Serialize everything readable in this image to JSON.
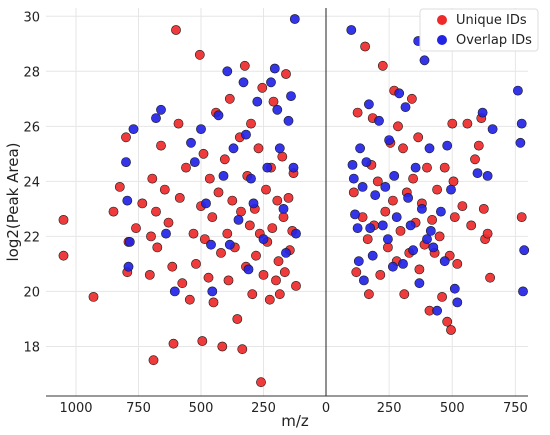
{
  "chart_data": {
    "type": "scatter",
    "title": "",
    "xlabel": "m/z",
    "ylabel": "log2(Peak Area)",
    "x_tick_labels_left": [
      "1000",
      "750",
      "500",
      "250",
      "0"
    ],
    "x_tick_labels_right": [
      "250",
      "500",
      "750"
    ],
    "xlim_left": [
      1120,
      0
    ],
    "xlim_right": [
      0,
      800
    ],
    "ylim": [
      16.2,
      30.3
    ],
    "yticks": [
      18,
      20,
      22,
      24,
      26,
      28,
      30
    ],
    "grid": true,
    "legend_position": "top-right",
    "colors": {
      "unique": "#ee2a2a",
      "overlap": "#2323e6"
    },
    "series": [
      {
        "name": "Unique IDs",
        "panel": "left",
        "points": [
          [
            1050,
            22.6
          ],
          [
            1050,
            21.3
          ],
          [
            930,
            19.8
          ],
          [
            850,
            22.9
          ],
          [
            825,
            23.8
          ],
          [
            800,
            25.6
          ],
          [
            795,
            20.7
          ],
          [
            790,
            21.8
          ],
          [
            760,
            22.3
          ],
          [
            735,
            23.2
          ],
          [
            705,
            20.6
          ],
          [
            700,
            22.0
          ],
          [
            695,
            24.1
          ],
          [
            690,
            17.5
          ],
          [
            680,
            22.9
          ],
          [
            675,
            21.6
          ],
          [
            660,
            25.3
          ],
          [
            645,
            23.7
          ],
          [
            630,
            22.5
          ],
          [
            615,
            20.9
          ],
          [
            610,
            18.1
          ],
          [
            600,
            29.5
          ],
          [
            590,
            26.1
          ],
          [
            585,
            23.4
          ],
          [
            575,
            20.3
          ],
          [
            560,
            24.5
          ],
          [
            545,
            19.7
          ],
          [
            530,
            22.1
          ],
          [
            520,
            21.0
          ],
          [
            505,
            28.6
          ],
          [
            500,
            23.1
          ],
          [
            495,
            18.2
          ],
          [
            490,
            25.0
          ],
          [
            485,
            21.9
          ],
          [
            470,
            20.5
          ],
          [
            465,
            24.1
          ],
          [
            455,
            22.7
          ],
          [
            450,
            19.6
          ],
          [
            440,
            26.5
          ],
          [
            430,
            23.6
          ],
          [
            420,
            21.4
          ],
          [
            415,
            18.0
          ],
          [
            405,
            24.8
          ],
          [
            395,
            22.1
          ],
          [
            390,
            20.4
          ],
          [
            385,
            27.0
          ],
          [
            375,
            23.3
          ],
          [
            365,
            21.6
          ],
          [
            355,
            19.0
          ],
          [
            345,
            25.6
          ],
          [
            340,
            22.9
          ],
          [
            335,
            17.9
          ],
          [
            325,
            28.2
          ],
          [
            320,
            20.9
          ],
          [
            315,
            24.2
          ],
          [
            305,
            22.4
          ],
          [
            300,
            26.1
          ],
          [
            295,
            19.9
          ],
          [
            285,
            23.0
          ],
          [
            280,
            21.3
          ],
          [
            270,
            25.2
          ],
          [
            265,
            22.1
          ],
          [
            260,
            16.7
          ],
          [
            255,
            27.4
          ],
          [
            250,
            20.6
          ],
          [
            240,
            23.7
          ],
          [
            235,
            21.8
          ],
          [
            225,
            19.7
          ],
          [
            220,
            24.5
          ],
          [
            215,
            22.3
          ],
          [
            210,
            26.9
          ],
          [
            200,
            20.4
          ],
          [
            195,
            23.3
          ],
          [
            190,
            21.1
          ],
          [
            185,
            19.9
          ],
          [
            175,
            24.9
          ],
          [
            170,
            22.7
          ],
          [
            165,
            20.7
          ],
          [
            160,
            27.9
          ],
          [
            150,
            23.4
          ],
          [
            145,
            21.5
          ],
          [
            135,
            22.2
          ],
          [
            130,
            24.3
          ],
          [
            120,
            20.2
          ]
        ]
      },
      {
        "name": "Overlap IDs",
        "panel": "left",
        "points": [
          [
            800,
            24.7
          ],
          [
            795,
            23.3
          ],
          [
            790,
            20.9
          ],
          [
            785,
            21.8
          ],
          [
            770,
            25.9
          ],
          [
            680,
            26.3
          ],
          [
            660,
            26.6
          ],
          [
            640,
            22.1
          ],
          [
            605,
            20.0
          ],
          [
            540,
            25.4
          ],
          [
            525,
            24.7
          ],
          [
            500,
            25.9
          ],
          [
            480,
            23.2
          ],
          [
            460,
            21.7
          ],
          [
            455,
            20.0
          ],
          [
            430,
            26.4
          ],
          [
            410,
            24.2
          ],
          [
            395,
            28.0
          ],
          [
            385,
            21.7
          ],
          [
            370,
            25.2
          ],
          [
            350,
            22.6
          ],
          [
            330,
            27.6
          ],
          [
            320,
            25.7
          ],
          [
            310,
            20.8
          ],
          [
            300,
            24.1
          ],
          [
            290,
            23.2
          ],
          [
            275,
            26.9
          ],
          [
            250,
            21.9
          ],
          [
            235,
            24.5
          ],
          [
            220,
            27.6
          ],
          [
            205,
            28.1
          ],
          [
            195,
            26.6
          ],
          [
            185,
            25.2
          ],
          [
            170,
            23.0
          ],
          [
            160,
            21.4
          ],
          [
            150,
            26.2
          ],
          [
            140,
            27.1
          ],
          [
            130,
            24.5
          ],
          [
            125,
            29.9
          ],
          [
            120,
            22.1
          ]
        ]
      },
      {
        "name": "Unique IDs",
        "panel": "right",
        "points": [
          [
            110,
            23.6
          ],
          [
            120,
            20.7
          ],
          [
            125,
            26.5
          ],
          [
            145,
            22.7
          ],
          [
            155,
            28.9
          ],
          [
            165,
            21.9
          ],
          [
            170,
            19.9
          ],
          [
            180,
            24.6
          ],
          [
            185,
            26.3
          ],
          [
            190,
            22.4
          ],
          [
            205,
            24.0
          ],
          [
            215,
            20.6
          ],
          [
            225,
            28.2
          ],
          [
            235,
            22.9
          ],
          [
            245,
            21.6
          ],
          [
            255,
            25.4
          ],
          [
            265,
            23.3
          ],
          [
            270,
            27.3
          ],
          [
            280,
            21.1
          ],
          [
            285,
            26.0
          ],
          [
            295,
            22.2
          ],
          [
            305,
            25.2
          ],
          [
            310,
            19.9
          ],
          [
            320,
            23.6
          ],
          [
            330,
            21.4
          ],
          [
            340,
            27.0
          ],
          [
            345,
            24.1
          ],
          [
            355,
            22.5
          ],
          [
            365,
            25.6
          ],
          [
            370,
            20.8
          ],
          [
            380,
            23.2
          ],
          [
            390,
            21.7
          ],
          [
            400,
            24.5
          ],
          [
            410,
            19.3
          ],
          [
            420,
            22.6
          ],
          [
            430,
            21.4
          ],
          [
            440,
            23.7
          ],
          [
            450,
            22.0
          ],
          [
            460,
            19.8
          ],
          [
            470,
            24.5
          ],
          [
            480,
            18.9
          ],
          [
            490,
            21.3
          ],
          [
            495,
            18.6
          ],
          [
            500,
            26.1
          ],
          [
            505,
            24.0
          ],
          [
            510,
            22.7
          ],
          [
            520,
            21.0
          ],
          [
            540,
            23.1
          ],
          [
            560,
            26.1
          ],
          [
            575,
            22.4
          ],
          [
            590,
            24.8
          ],
          [
            605,
            25.3
          ],
          [
            615,
            26.3
          ],
          [
            625,
            23.0
          ],
          [
            630,
            21.9
          ],
          [
            640,
            22.1
          ],
          [
            650,
            20.5
          ],
          [
            775,
            22.7
          ]
        ]
      },
      {
        "name": "Overlap IDs",
        "panel": "right",
        "points": [
          [
            100,
            29.5
          ],
          [
            105,
            24.6
          ],
          [
            110,
            24.1
          ],
          [
            115,
            22.8
          ],
          [
            125,
            22.3
          ],
          [
            130,
            21.1
          ],
          [
            135,
            25.2
          ],
          [
            145,
            23.8
          ],
          [
            150,
            20.4
          ],
          [
            160,
            24.7
          ],
          [
            170,
            26.8
          ],
          [
            175,
            22.3
          ],
          [
            185,
            21.3
          ],
          [
            195,
            23.5
          ],
          [
            210,
            26.2
          ],
          [
            225,
            22.4
          ],
          [
            235,
            23.8
          ],
          [
            245,
            21.9
          ],
          [
            250,
            25.5
          ],
          [
            265,
            20.9
          ],
          [
            270,
            24.2
          ],
          [
            280,
            22.7
          ],
          [
            290,
            27.2
          ],
          [
            305,
            21.0
          ],
          [
            315,
            26.7
          ],
          [
            325,
            23.4
          ],
          [
            335,
            22.4
          ],
          [
            345,
            21.5
          ],
          [
            355,
            24.5
          ],
          [
            365,
            29.1
          ],
          [
            370,
            20.3
          ],
          [
            380,
            23.0
          ],
          [
            390,
            28.4
          ],
          [
            400,
            21.9
          ],
          [
            410,
            25.2
          ],
          [
            415,
            22.2
          ],
          [
            425,
            21.6
          ],
          [
            440,
            19.3
          ],
          [
            455,
            22.9
          ],
          [
            470,
            21.1
          ],
          [
            480,
            25.3
          ],
          [
            495,
            23.7
          ],
          [
            510,
            20.1
          ],
          [
            520,
            19.6
          ],
          [
            600,
            24.3
          ],
          [
            620,
            26.5
          ],
          [
            640,
            24.2
          ],
          [
            660,
            25.9
          ],
          [
            760,
            27.3
          ],
          [
            770,
            25.4
          ],
          [
            775,
            26.1
          ],
          [
            780,
            20.0
          ],
          [
            785,
            21.5
          ]
        ]
      }
    ],
    "legend": [
      {
        "label": "Unique IDs",
        "color": "#ee2a2a"
      },
      {
        "label": "Overlap IDs",
        "color": "#2323e6"
      }
    ]
  }
}
